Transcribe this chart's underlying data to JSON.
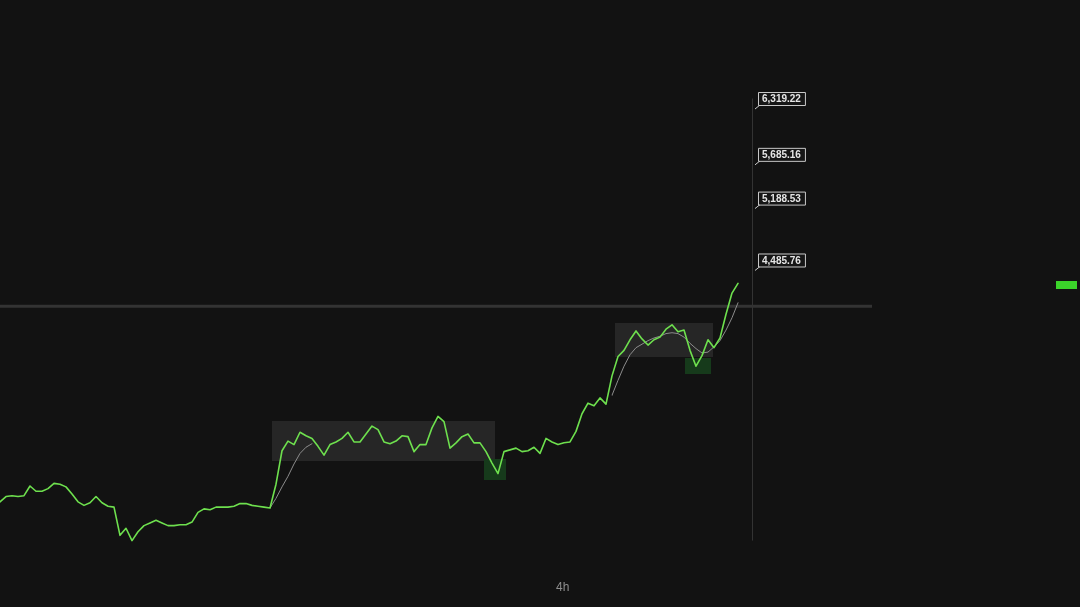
{
  "chart_data": {
    "type": "line",
    "marker": "none",
    "ylim": [
      1300,
      6319.22
    ],
    "yticks": [
      {
        "value": 6319.22,
        "label": "6,319.22"
      },
      {
        "value": 5685.16,
        "label": "5,685.16"
      },
      {
        "value": 5188.53,
        "label": "5,188.53"
      },
      {
        "value": 4485.76,
        "label": "4,485.76"
      }
    ],
    "categories": [
      null,
      null,
      null,
      null,
      null,
      null,
      null,
      null,
      null,
      null,
      null,
      null,
      null,
      null,
      null,
      null,
      null,
      null,
      null,
      null,
      null,
      null,
      null,
      null,
      null,
      null,
      null,
      null,
      null,
      null,
      null,
      null,
      null,
      null,
      null,
      null,
      null,
      null,
      null,
      null,
      null,
      null,
      null,
      null,
      null,
      null,
      null,
      null,
      null,
      null,
      null,
      null,
      null,
      null,
      null,
      null,
      null,
      null,
      null,
      null,
      null,
      null,
      null,
      null,
      null,
      null,
      null,
      null,
      null,
      null,
      null,
      null,
      null,
      null,
      null,
      null,
      null,
      null,
      null,
      null,
      null,
      null,
      null,
      null,
      null,
      null,
      null,
      null,
      null,
      null,
      null,
      null,
      null,
      null,
      null,
      null,
      null,
      null,
      null,
      null,
      null,
      null,
      null,
      null,
      null,
      null,
      null,
      null,
      null,
      null,
      null,
      null,
      null,
      null,
      null,
      null,
      null,
      null,
      null,
      null,
      null,
      null,
      null,
      null
    ],
    "series": [
      {
        "color": "#6ee04e",
        "values": [
          1740,
          1800,
          1810,
          1800,
          1810,
          1920,
          1860,
          1860,
          1890,
          1950,
          1940,
          1910,
          1830,
          1740,
          1700,
          1730,
          1800,
          1730,
          1690,
          1680,
          1360,
          1440,
          1300,
          1400,
          1470,
          1500,
          1530,
          1500,
          1470,
          1470,
          1480,
          1480,
          1510,
          1620,
          1660,
          1650,
          1680,
          1680,
          1680,
          1690,
          1720,
          1720,
          1700,
          1690,
          1680,
          1670,
          1940,
          2320,
          2430,
          2390,
          2530,
          2490,
          2460,
          2370,
          2270,
          2390,
          2420,
          2460,
          2530,
          2420,
          2420,
          2510,
          2600,
          2560,
          2420,
          2400,
          2430,
          2490,
          2480,
          2310,
          2390,
          2390,
          2580,
          2710,
          2650,
          2350,
          2410,
          2480,
          2510,
          2410,
          2410,
          2310,
          2180,
          2060,
          2310,
          2330,
          2350,
          2310,
          2320,
          2360,
          2290,
          2460,
          2420,
          2390,
          2410,
          2420,
          2540,
          2740,
          2860,
          2830,
          2920,
          2850,
          3170,
          3390,
          3460,
          3580,
          3680,
          3590,
          3520,
          3580,
          3610,
          3700,
          3750,
          3670,
          3690,
          3460,
          3280,
          3400,
          3580,
          3490,
          3600,
          3870,
          4110,
          4220
        ]
      },
      {
        "color": "#8c8c8c",
        "values": [
          null,
          null,
          null,
          null,
          null,
          null,
          null,
          null,
          null,
          null,
          null,
          null,
          null,
          null,
          null,
          null,
          null,
          null,
          null,
          null,
          null,
          null,
          null,
          null,
          null,
          null,
          null,
          null,
          null,
          null,
          null,
          null,
          null,
          null,
          null,
          null,
          null,
          null,
          null,
          null,
          null,
          null,
          null,
          null,
          null,
          1670,
          1780,
          1910,
          2030,
          2170,
          2290,
          2360,
          2400,
          null,
          null,
          null,
          null,
          null,
          null,
          null,
          null,
          null,
          null,
          null,
          null,
          null,
          null,
          null,
          null,
          null,
          null,
          null,
          null,
          null,
          null,
          null,
          null,
          null,
          null,
          null,
          null,
          null,
          null,
          null,
          null,
          null,
          null,
          null,
          null,
          null,
          null,
          null,
          null,
          null,
          null,
          null,
          null,
          null,
          null,
          null,
          null,
          null,
          2950,
          3120,
          3280,
          3410,
          3490,
          3530,
          3570,
          3600,
          3620,
          3650,
          3660,
          3650,
          3610,
          3540,
          3480,
          3430,
          3440,
          3500,
          3570,
          3690,
          3830,
          4000
        ]
      }
    ],
    "ref_lines": [
      {
        "axis": "y",
        "value": 3960,
        "color": "#333333"
      }
    ],
    "annotations": [
      "4h"
    ]
  }
}
